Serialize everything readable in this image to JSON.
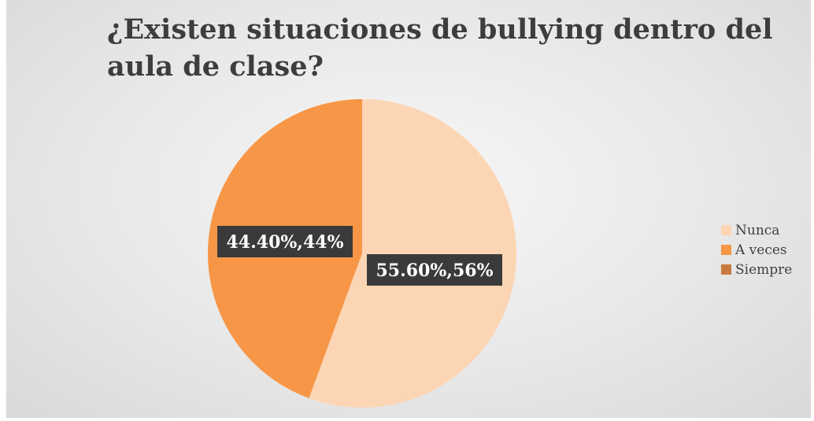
{
  "chart_data": {
    "type": "pie",
    "title": "¿Existen situaciones de bullying dentro del aula de clase?",
    "categories": [
      "Nunca",
      "A veces",
      "Siempre"
    ],
    "values": [
      55.6,
      44.4,
      0
    ],
    "data_labels": [
      "55.60%,56%",
      "44.40%,44%",
      ""
    ],
    "colors": [
      "#fcd5b4",
      "#f79646",
      "#c97a3e"
    ],
    "legend_position": "right",
    "start_angle": "top, clockwise"
  }
}
